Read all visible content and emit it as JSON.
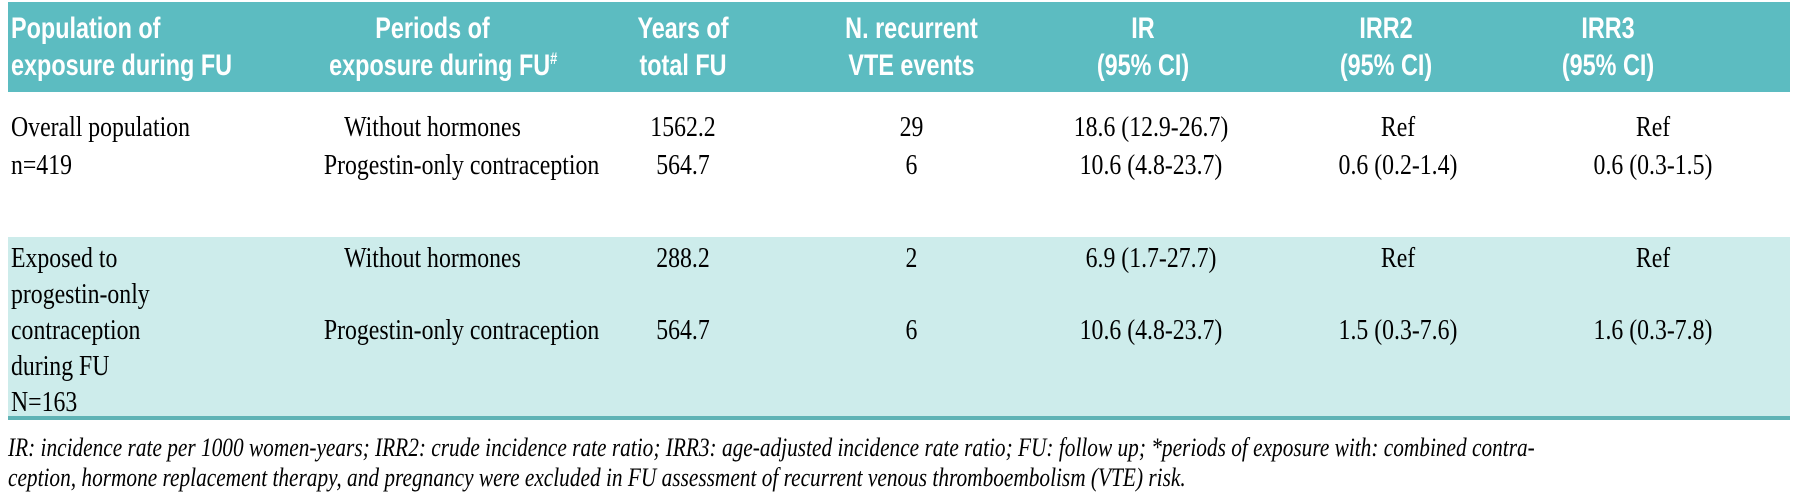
{
  "colors": {
    "header_bg": "#5cbcc1",
    "header_text": "#ffffff",
    "section2_bg": "#cdeceb",
    "rule": "#5fb3b5",
    "body_text": "#000000"
  },
  "table": {
    "header": [
      {
        "line1": "Population of",
        "line2": "exposure during FU"
      },
      {
        "line1": "Periods of",
        "line2": "exposure during FU",
        "sup": "#"
      },
      {
        "line1": "Years of",
        "line2": "total FU"
      },
      {
        "line1": "N. recurrent",
        "line2": "VTE events"
      },
      {
        "line1": "IR",
        "line2": "(95% CI)"
      },
      {
        "line1": "IRR2",
        "line2": "(95% CI)"
      },
      {
        "line1": "IRR3",
        "line2": "(95% CI)"
      }
    ],
    "sections": [
      {
        "population_lines": [
          "Overall population",
          "n=419"
        ],
        "rows": [
          {
            "period": "Without hormones",
            "years": "1562.2",
            "events": "29",
            "ir": "18.6 (12.9-26.7)",
            "irr2": "Ref",
            "irr3": "Ref"
          },
          {
            "period": "Progestin-only contraception",
            "years": "564.7",
            "events": "6",
            "ir": "10.6 (4.8-23.7)",
            "irr2": "0.6 (0.2-1.4)",
            "irr3": "0.6 (0.3-1.5)"
          }
        ]
      },
      {
        "population_lines": [
          "Exposed to",
          "progestin-only",
          "contraception",
          "during FU",
          "N=163"
        ],
        "rows": [
          {
            "period": "Without hormones",
            "years": "288.2",
            "events": "2",
            "ir": "6.9 (1.7-27.7)",
            "irr2": "Ref",
            "irr3": "Ref"
          },
          {
            "period": "Progestin-only contraception",
            "years": "564.7",
            "events": "6",
            "ir": "10.6 (4.8-23.7)",
            "irr2": "1.5 (0.3-7.6)",
            "irr3": "1.6 (0.3-7.8)"
          }
        ]
      }
    ]
  },
  "footnote": {
    "line1": "IR: incidence rate per 1000 women-years; IRR2: crude incidence rate ratio; IRR3: age-adjusted incidence rate ratio; FU: follow up; *periods of exposure with: combined contra-",
    "line2": "ception, hormone replacement therapy, and pregnancy were excluded in FU assessment of recurrent venous thromboembolism (VTE) risk."
  }
}
